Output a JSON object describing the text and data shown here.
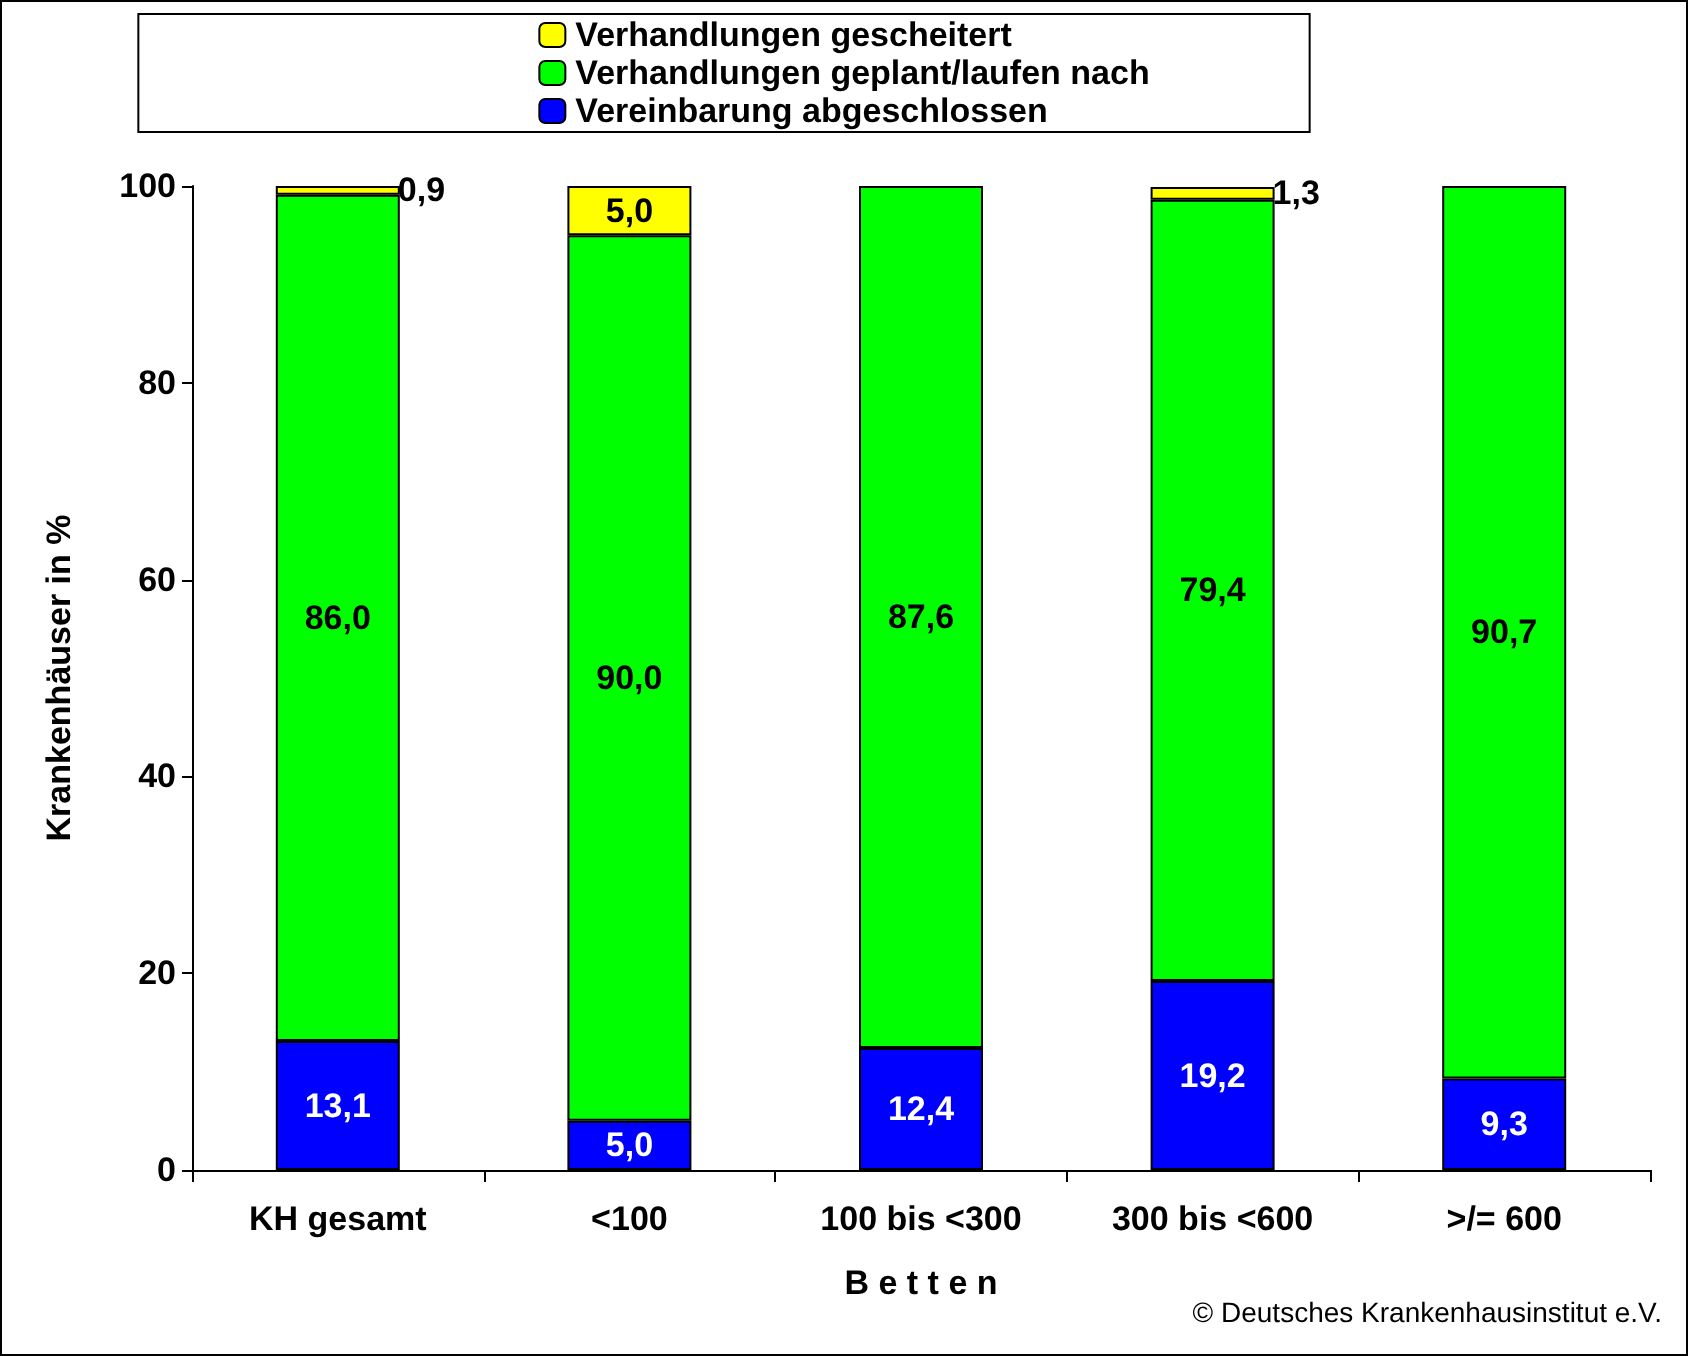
{
  "chart_data": {
    "type": "bar",
    "stacked": true,
    "xlabel": "B e t t e n",
    "ylabel": "Krankenhäuser in %",
    "categories": [
      "KH gesamt",
      "<100",
      "100 bis <300",
      "300 bis <600",
      ">/= 600"
    ],
    "series": [
      {
        "name": "Vereinbarung abgeschlossen",
        "color": "#0000ff",
        "values": [
          13.1,
          5.0,
          12.4,
          19.2,
          9.3
        ],
        "value_labels": [
          "13,1",
          "5,0",
          "12,4",
          "19,2",
          "9,3"
        ]
      },
      {
        "name": "Verhandlungen geplant/laufen nach",
        "color": "#00ff00",
        "values": [
          86.0,
          90.0,
          87.6,
          79.4,
          90.7
        ],
        "value_labels": [
          "86,0",
          "90,0",
          "87,6",
          "79,4",
          "90,7"
        ]
      },
      {
        "name": "Verhandlungen gescheitert",
        "color": "#ffff00",
        "values": [
          0.9,
          5.0,
          null,
          1.3,
          null
        ],
        "value_labels": [
          "0,9",
          "5,0",
          null,
          "1,3",
          null
        ]
      }
    ],
    "ylim": [
      0,
      100
    ],
    "yticks": [
      0,
      20,
      40,
      60,
      80,
      100
    ],
    "grid": false,
    "legend": "top",
    "annotations": [
      "© Deutsches Krankenhausinstitut e.V."
    ]
  }
}
